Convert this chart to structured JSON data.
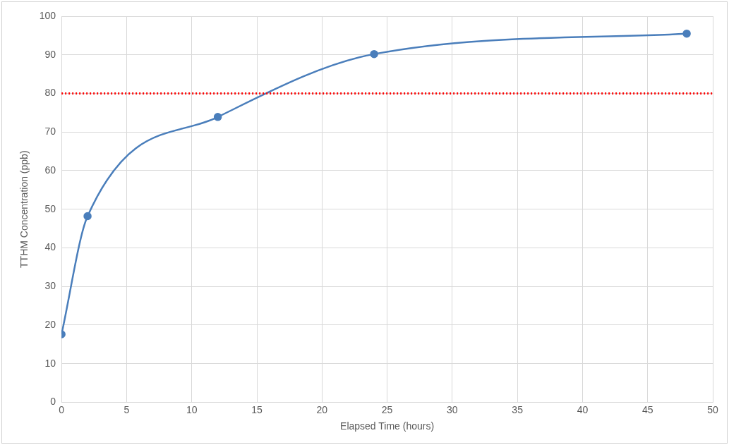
{
  "chart_data": {
    "type": "line",
    "xlabel": "Elapsed Time (hours)",
    "ylabel": "TTHM Concentration (ppb)",
    "x": [
      0,
      2,
      12,
      24,
      48
    ],
    "series": [
      {
        "color": "#4a7ebb",
        "values": [
          17.6,
          48.2,
          73.9,
          90.2,
          95.5
        ]
      }
    ],
    "xlim": [
      0,
      50
    ],
    "xticks": [
      0,
      5,
      10,
      15,
      20,
      25,
      30,
      35,
      40,
      45,
      50
    ],
    "ylim": [
      0,
      100
    ],
    "yticks": [
      0,
      10,
      20,
      30,
      40,
      50,
      60,
      70,
      80,
      90,
      100
    ],
    "ref_lines": [
      {
        "axis": "y",
        "value": 80,
        "color": "#ff0000",
        "line_style": "dotted"
      }
    ],
    "grid": true,
    "legend": false,
    "marker": "circle",
    "line_style": "solid"
  }
}
